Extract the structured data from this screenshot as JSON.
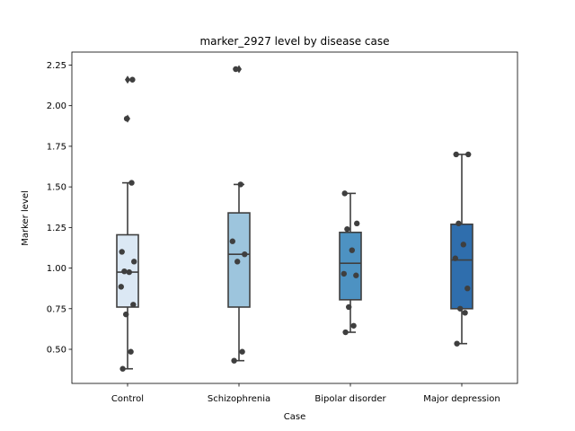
{
  "chart_data": {
    "type": "box",
    "title": "marker_2927 level by disease case",
    "xlabel": "Case",
    "ylabel": "Marker level",
    "ylim": [
      0.29,
      2.33
    ],
    "yticks": [
      "0.50",
      "0.75",
      "1.00",
      "1.25",
      "1.50",
      "1.75",
      "2.00",
      "2.25"
    ],
    "ytick_values": [
      0.5,
      0.75,
      1.0,
      1.25,
      1.5,
      1.75,
      2.0,
      2.25
    ],
    "categories": [
      "Control",
      "Schizophrenia",
      "Bipolar disorder",
      "Major depression"
    ],
    "colors": [
      "#dbe8f4",
      "#9dc5dd",
      "#4d92c2",
      "#2f6ead"
    ],
    "boxes": [
      {
        "q1": 0.76,
        "median": 0.975,
        "q3": 1.205,
        "whisker_low": 0.38,
        "whisker_high": 1.525,
        "outliers": [
          1.92,
          2.16
        ]
      },
      {
        "q1": 0.76,
        "median": 1.085,
        "q3": 1.34,
        "whisker_low": 0.43,
        "whisker_high": 1.515,
        "outliers": [
          2.225
        ]
      },
      {
        "q1": 0.805,
        "median": 1.03,
        "q3": 1.22,
        "whisker_low": 0.605,
        "whisker_high": 1.46,
        "outliers": []
      },
      {
        "q1": 0.75,
        "median": 1.05,
        "q3": 1.27,
        "whisker_low": 0.535,
        "whisker_high": 1.7,
        "outliers": []
      }
    ],
    "points": [
      {
        "category": "Control",
        "values": [
          0.38,
          0.485,
          0.715,
          0.775,
          0.885,
          0.975,
          0.98,
          1.04,
          1.1,
          1.525,
          1.92,
          2.16
        ]
      },
      {
        "category": "Schizophrenia",
        "values": [
          0.43,
          0.485,
          1.04,
          1.085,
          1.165,
          1.515,
          2.225
        ]
      },
      {
        "category": "Bipolar disorder",
        "values": [
          0.605,
          0.645,
          0.76,
          0.955,
          0.965,
          1.11,
          1.24,
          1.275,
          1.46
        ]
      },
      {
        "category": "Major depression",
        "values": [
          0.535,
          0.725,
          0.75,
          0.875,
          1.06,
          1.145,
          1.275,
          1.7,
          1.7
        ]
      }
    ],
    "grid": false,
    "legend": "none"
  }
}
